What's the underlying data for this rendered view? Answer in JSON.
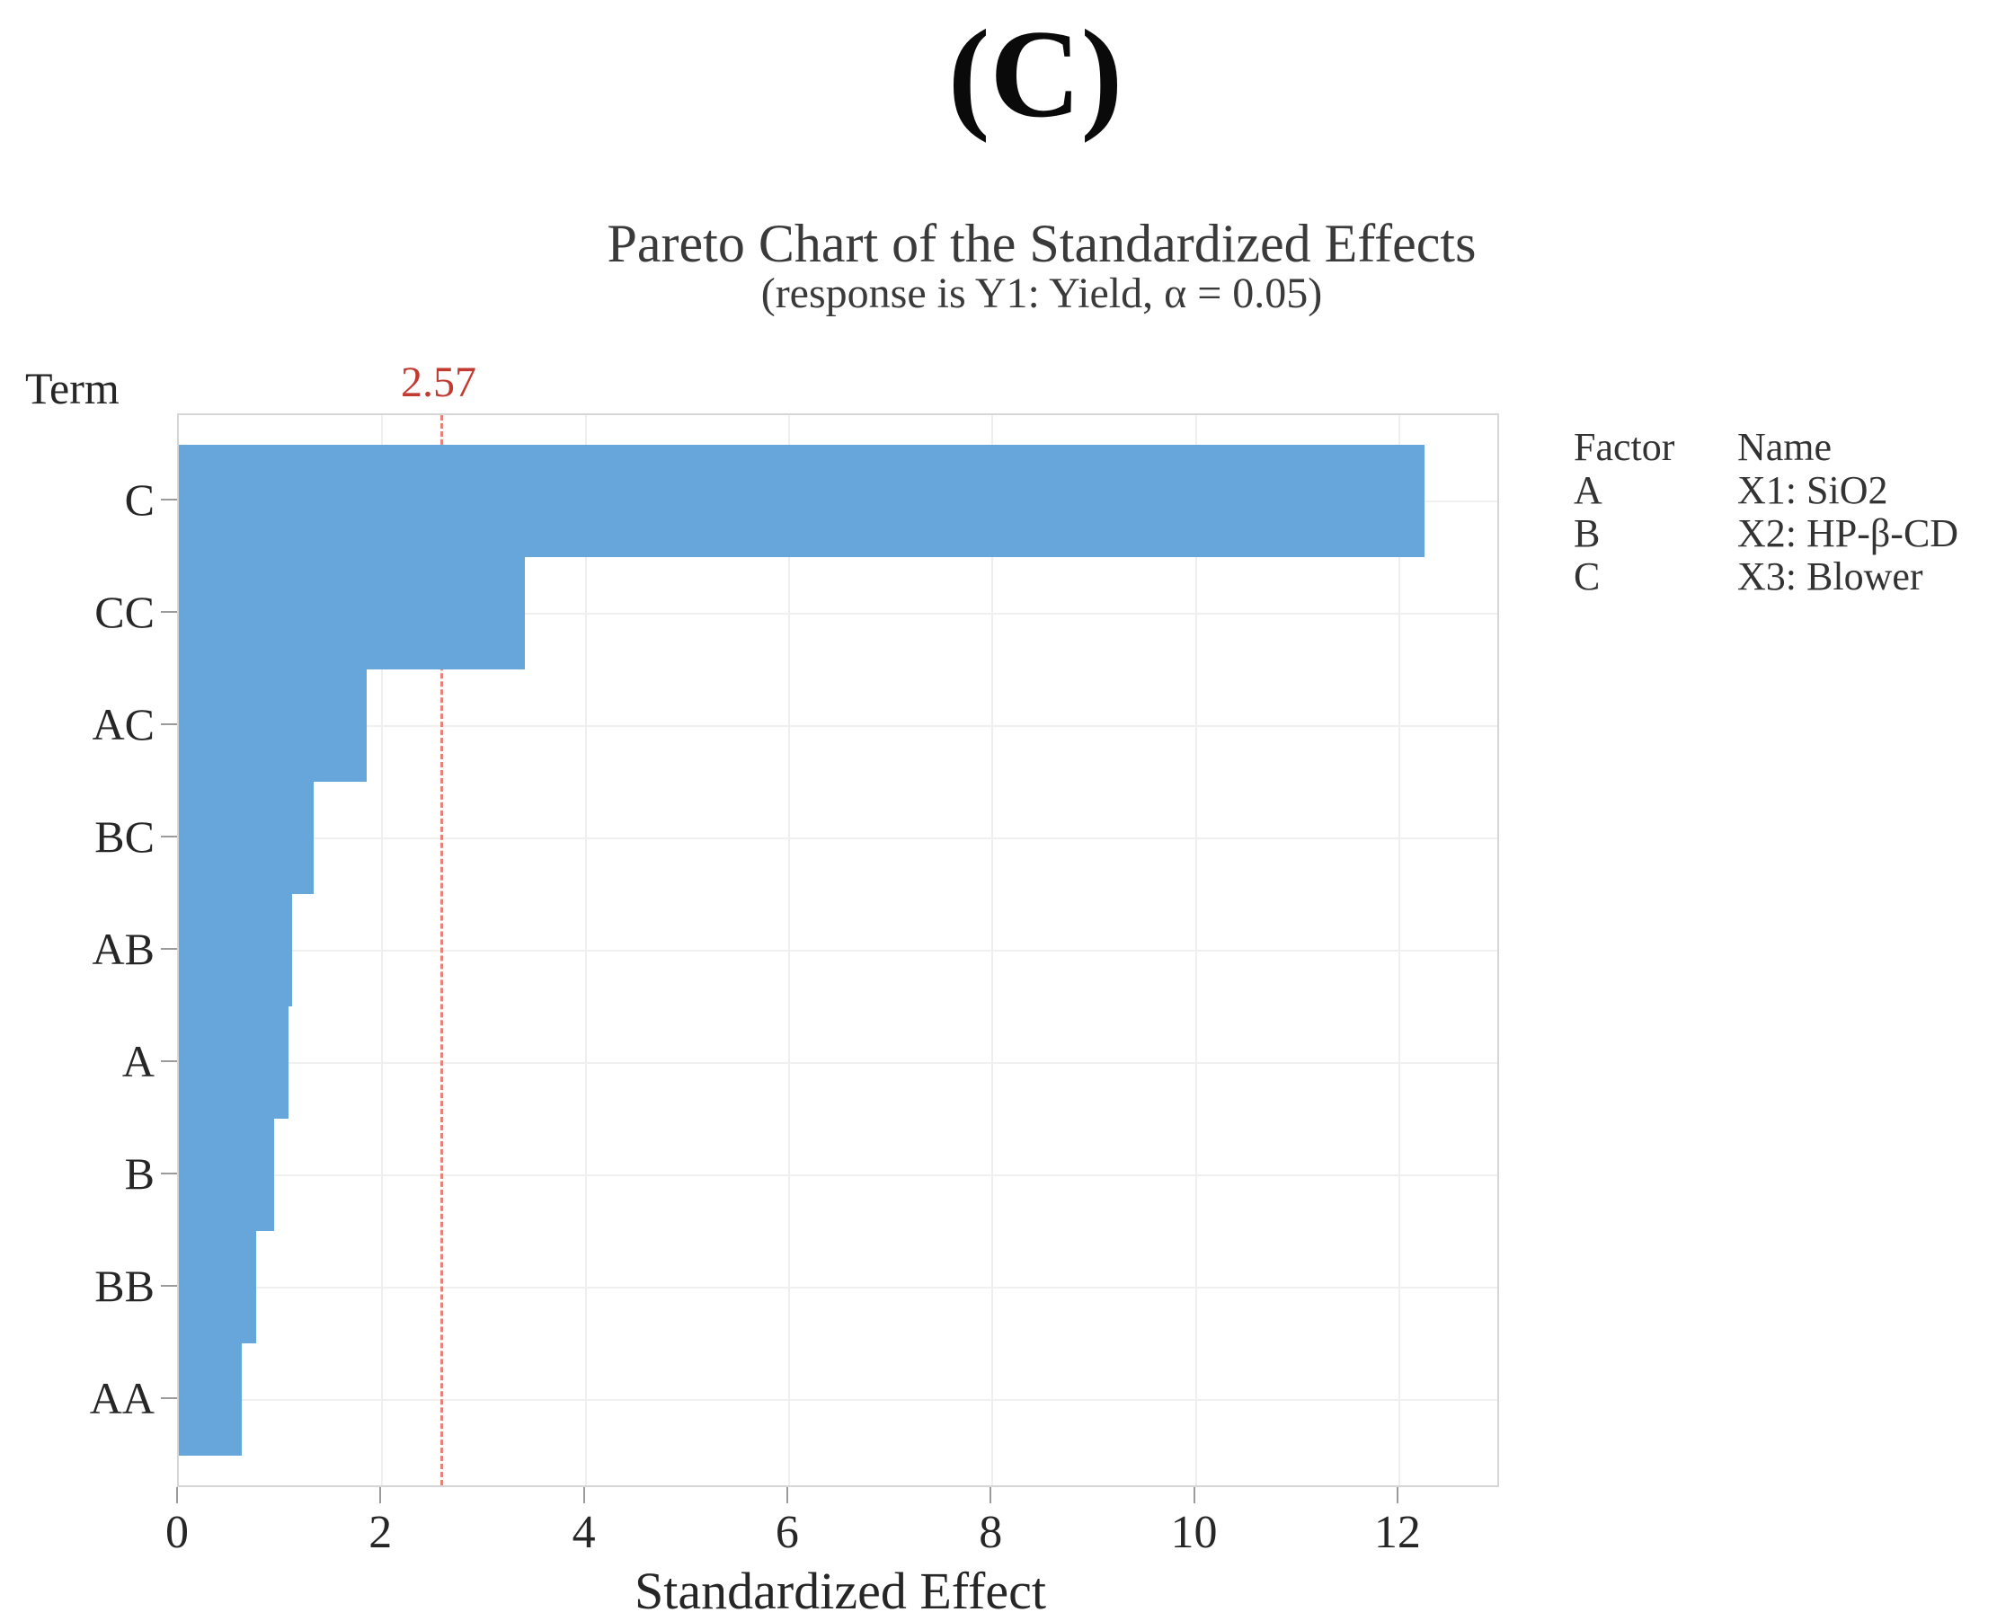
{
  "figure_label": "(C)",
  "chart": {
    "title": "Pareto Chart of the Standardized Effects",
    "subtitle": "(response is Y1: Yield, α = 0.05)",
    "y_axis_title": "Term",
    "x_axis_label": "Standardized Effect",
    "reference_line": {
      "value": 2.57,
      "label": "2.57"
    }
  },
  "chart_data": {
    "type": "bar",
    "orientation": "horizontal",
    "title": "Pareto Chart of the Standardized Effects",
    "subtitle": "(response is Y1: Yield, α = 0.05)",
    "categories": [
      "C",
      "CC",
      "AC",
      "BC",
      "AB",
      "A",
      "B",
      "BB",
      "AA"
    ],
    "values": [
      12.25,
      3.4,
      1.85,
      1.33,
      1.11,
      1.08,
      0.94,
      0.76,
      0.62
    ],
    "xlabel": "Standardized Effect",
    "ylabel": "Term",
    "xlim": [
      0,
      13
    ],
    "x_ticks": [
      0,
      2,
      4,
      6,
      8,
      10,
      12
    ],
    "reference_line_value": 2.57,
    "grid": true,
    "legend_position": "right",
    "colors": {
      "bar": "#67a6db",
      "reference_line": "#e5837b",
      "reference_label": "#c23b30",
      "gridline": "#efefef",
      "frame": "#d6d6d6",
      "text": "#262626"
    }
  },
  "legend": {
    "header": {
      "factor": "Factor",
      "name": "Name"
    },
    "rows": [
      {
        "factor": "A",
        "name": "X1: SiO2"
      },
      {
        "factor": "B",
        "name": "X2: HP-β-CD"
      },
      {
        "factor": "C",
        "name": "X3: Blower"
      }
    ]
  }
}
